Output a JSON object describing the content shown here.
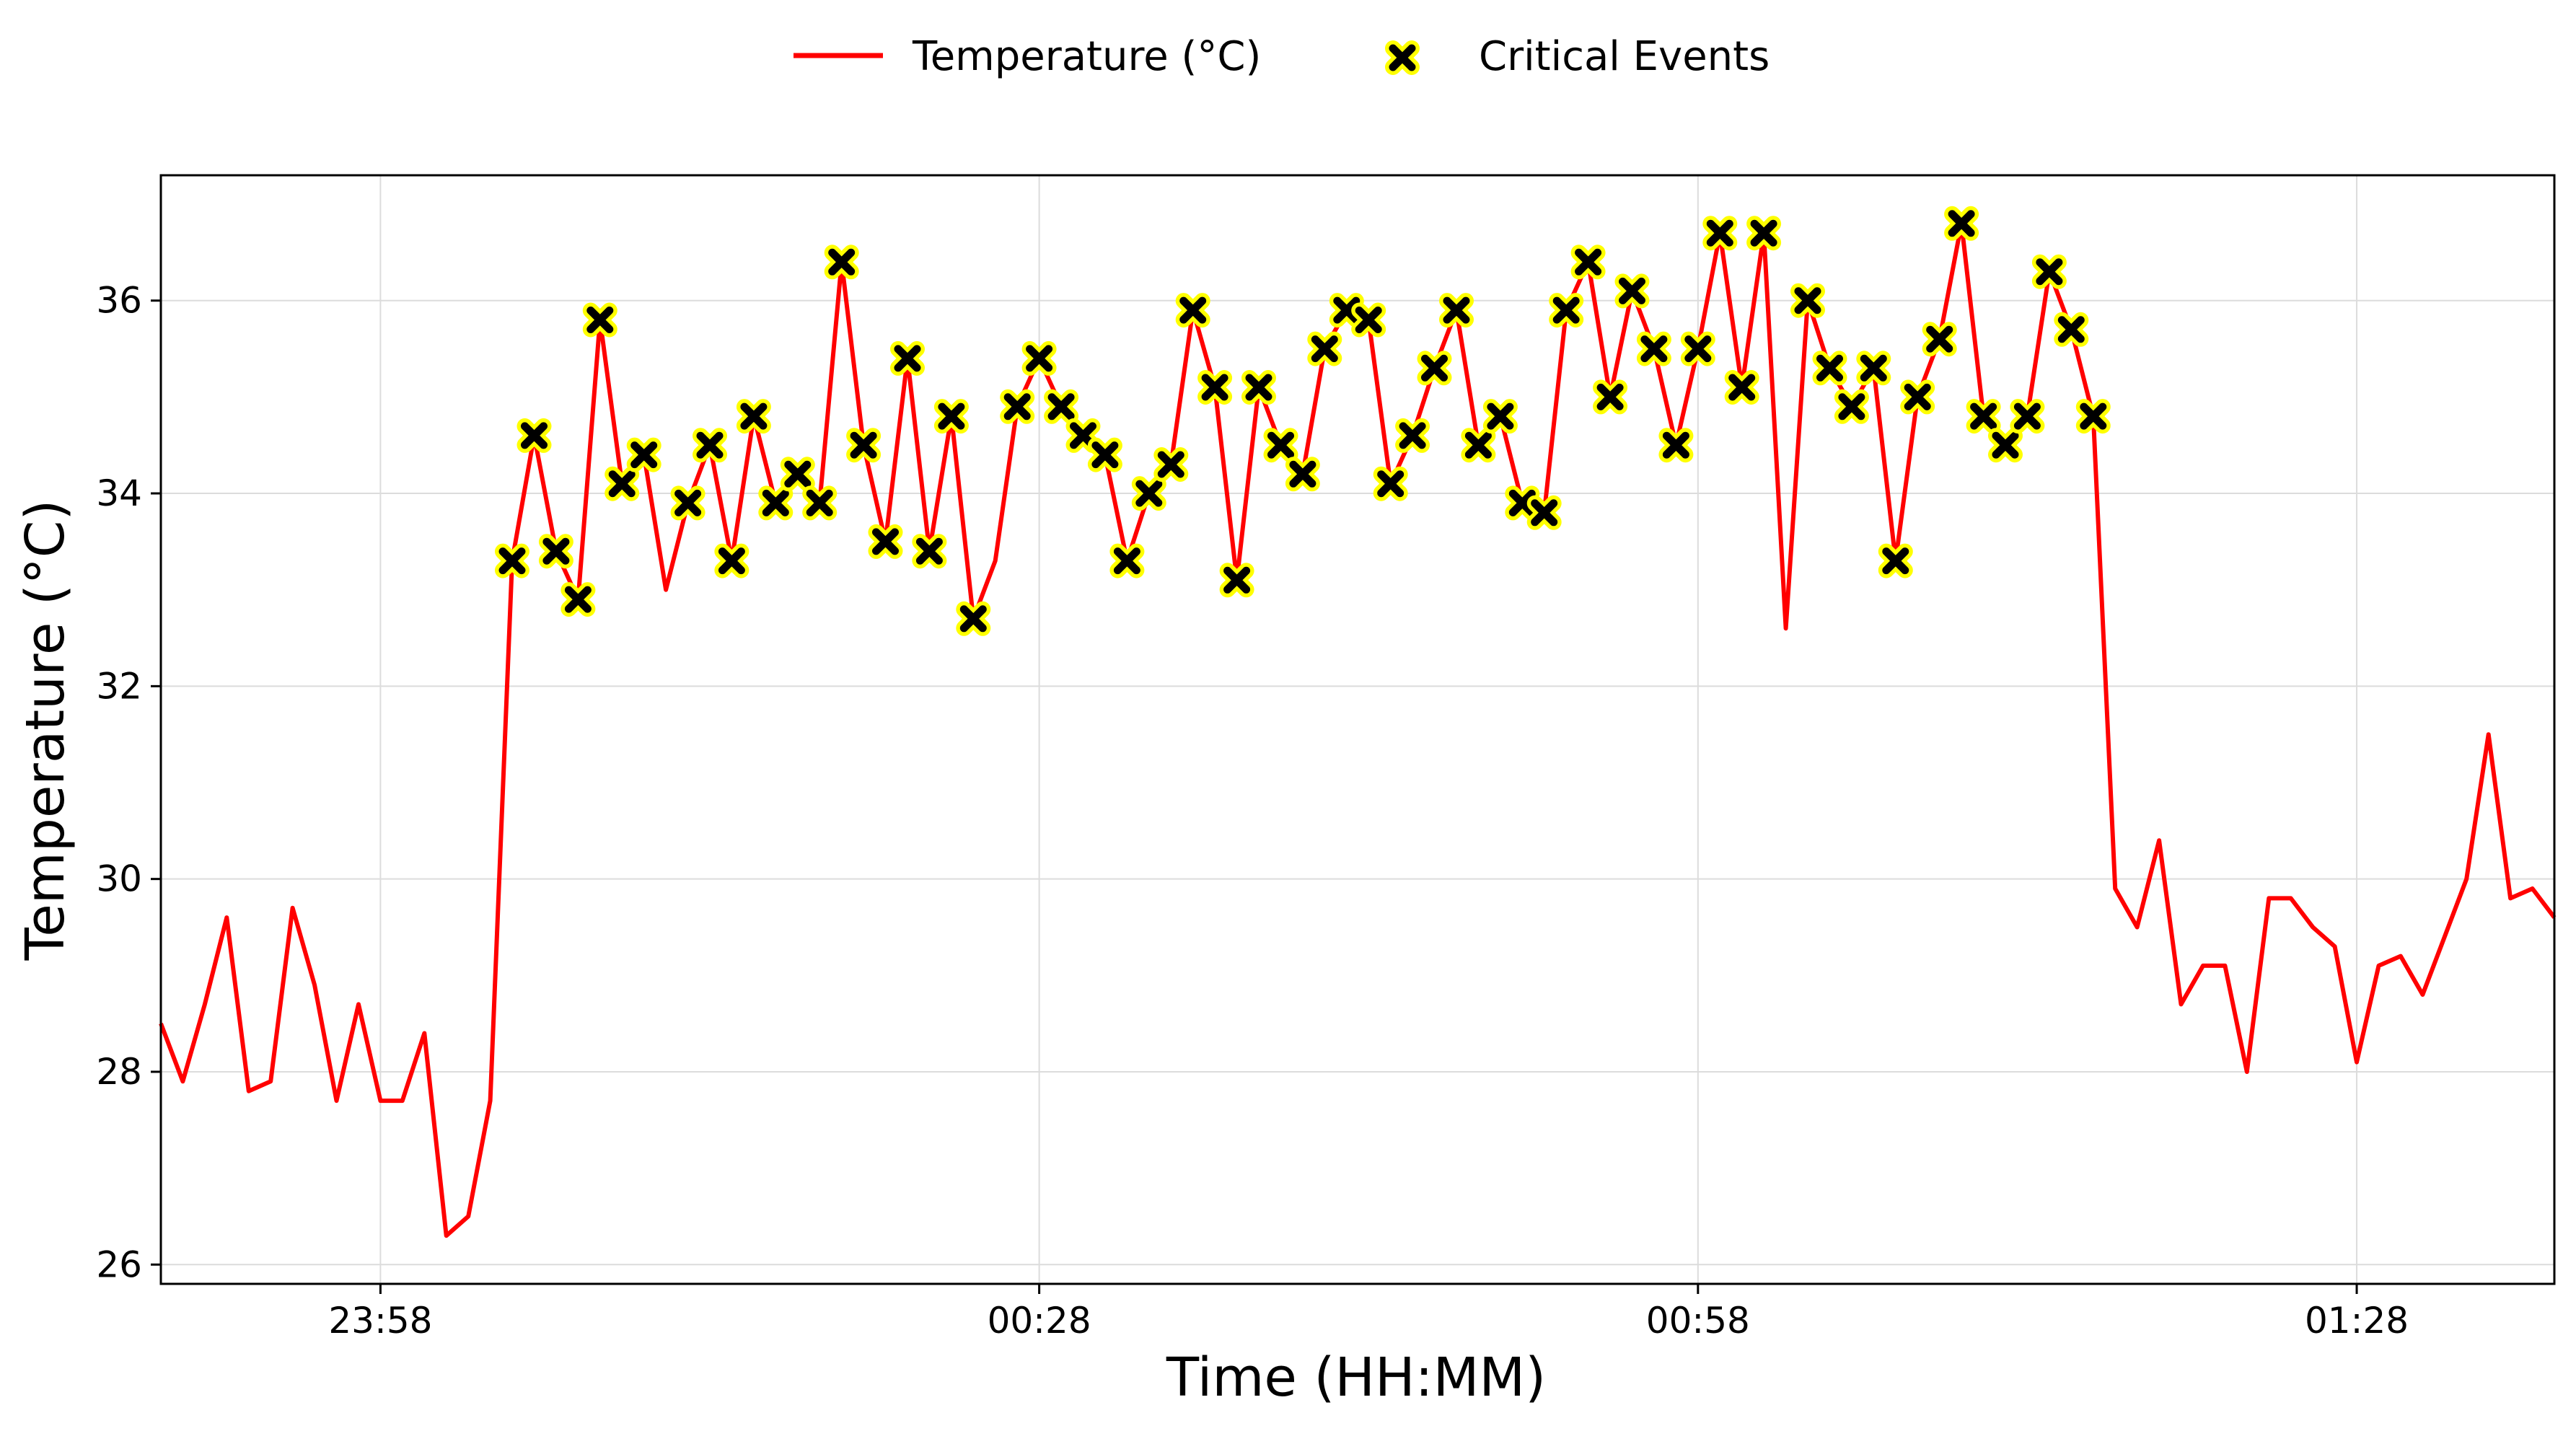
{
  "chart_data": {
    "type": "line",
    "xlabel": "Time (HH:MM)",
    "ylabel": "Temperature (°C)",
    "x_tick_labels": [
      "23:58",
      "00:28",
      "00:58",
      "01:28"
    ],
    "x_ticks_minutes": [
      0,
      30,
      60,
      90
    ],
    "y_ticks": [
      26,
      28,
      30,
      32,
      34,
      36
    ],
    "xlim_minutes": [
      -10,
      99
    ],
    "ylim": [
      25.8,
      37.3
    ],
    "grid": true,
    "legend_placement": "top-center",
    "colors": {
      "line": "#ff0000",
      "marker_fill": "#000000",
      "marker_edge": "#ffff00"
    },
    "series": [
      {
        "name": "Temperature (°C)",
        "kind": "line",
        "x_minutes": [
          -10,
          -9,
          -8,
          -7,
          -6,
          -5,
          -4,
          -3,
          -2,
          -1,
          0,
          1,
          2,
          3,
          4,
          5,
          6,
          7,
          8,
          9,
          10,
          11,
          12,
          13,
          14,
          15,
          16,
          17,
          18,
          19,
          20,
          21,
          22,
          23,
          24,
          25,
          26,
          27,
          28,
          29,
          30,
          31,
          32,
          33,
          34,
          35,
          36,
          37,
          38,
          39,
          40,
          41,
          42,
          43,
          44,
          45,
          46,
          47,
          48,
          49,
          50,
          51,
          52,
          53,
          54,
          55,
          56,
          57,
          58,
          59,
          60,
          61,
          62,
          63,
          64,
          65,
          66,
          67,
          68,
          69,
          70,
          71,
          72,
          73,
          74,
          75,
          76,
          77,
          78,
          79,
          80,
          81,
          82,
          83,
          84,
          85,
          86,
          87,
          88,
          89,
          90,
          91,
          92,
          93,
          94,
          95,
          96,
          97,
          98,
          99
        ],
        "y": [
          28.5,
          27.9,
          28.7,
          29.6,
          27.8,
          27.9,
          29.7,
          28.9,
          27.7,
          28.7,
          27.7,
          27.7,
          28.4,
          26.3,
          26.5,
          27.7,
          33.3,
          34.6,
          33.4,
          32.9,
          35.8,
          34.1,
          34.4,
          33.0,
          33.9,
          34.5,
          33.3,
          34.8,
          33.9,
          34.2,
          33.9,
          36.4,
          34.5,
          33.5,
          35.4,
          33.4,
          34.8,
          32.7,
          33.3,
          34.9,
          35.4,
          34.9,
          34.6,
          34.4,
          33.3,
          34.0,
          34.3,
          35.9,
          35.1,
          33.1,
          35.1,
          34.5,
          34.2,
          35.5,
          35.9,
          35.8,
          34.1,
          34.6,
          35.3,
          35.9,
          34.5,
          34.8,
          33.9,
          33.8,
          35.9,
          36.4,
          35.0,
          36.1,
          35.5,
          34.5,
          35.5,
          36.7,
          35.1,
          36.7,
          32.6,
          36.0,
          35.3,
          34.9,
          35.3,
          33.3,
          35.0,
          35.6,
          36.8,
          34.8,
          34.5,
          34.8,
          36.3,
          35.7,
          34.8,
          29.9,
          29.5,
          30.4,
          28.7,
          29.1,
          29.1,
          28.0,
          29.8,
          29.8,
          29.5,
          29.3,
          28.1,
          29.1,
          29.2,
          28.8,
          29.4,
          30.0,
          31.5,
          29.8,
          29.9,
          29.6
        ]
      },
      {
        "name": "Critical Events",
        "kind": "scatter",
        "x_minutes": [
          6,
          7,
          8,
          9,
          10,
          11,
          12,
          14,
          15,
          16,
          17,
          18,
          19,
          20,
          21,
          22,
          23,
          24,
          25,
          26,
          27,
          29,
          30,
          31,
          32,
          33,
          34,
          35,
          36,
          37,
          38,
          39,
          40,
          41,
          42,
          43,
          44,
          45,
          46,
          47,
          48,
          49,
          50,
          51,
          52,
          53,
          54,
          55,
          56,
          57,
          58,
          59,
          60,
          61,
          62,
          63,
          65,
          66,
          67,
          68,
          69,
          70,
          71,
          72,
          73,
          74,
          75,
          76,
          77,
          78
        ],
        "y": [
          33.3,
          34.6,
          33.4,
          32.9,
          35.8,
          34.1,
          34.4,
          33.9,
          34.5,
          33.3,
          34.8,
          33.9,
          34.2,
          33.9,
          36.4,
          34.5,
          33.5,
          35.4,
          33.4,
          34.8,
          32.7,
          34.9,
          35.4,
          34.9,
          34.6,
          34.4,
          33.3,
          34.0,
          34.3,
          35.9,
          35.1,
          33.1,
          35.1,
          34.5,
          34.2,
          35.5,
          35.9,
          35.8,
          34.1,
          34.6,
          35.3,
          35.9,
          34.5,
          34.8,
          33.9,
          33.8,
          35.9,
          36.4,
          35.0,
          36.1,
          35.5,
          34.5,
          35.5,
          36.7,
          35.1,
          36.7,
          36.0,
          35.3,
          34.9,
          35.3,
          33.3,
          35.0,
          35.6,
          36.8,
          34.8,
          34.5,
          34.8,
          36.3,
          35.7,
          34.8
        ]
      }
    ]
  }
}
